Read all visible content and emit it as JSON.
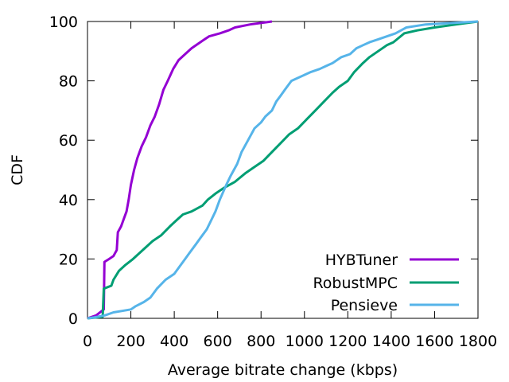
{
  "chart_data": {
    "type": "line",
    "xlabel": "Average bitrate change (kbps)",
    "ylabel": "CDF",
    "xlim": [
      0,
      1800
    ],
    "ylim": [
      0,
      100
    ],
    "x_ticks": [
      0,
      200,
      400,
      600,
      800,
      1000,
      1200,
      1400,
      1600,
      1800
    ],
    "y_ticks": [
      0,
      20,
      40,
      60,
      80,
      100
    ],
    "grid": false,
    "legend_position": "bottom-right",
    "series": [
      {
        "name": "HYBTuner",
        "color": "#9400d3",
        "points": [
          [
            0,
            0
          ],
          [
            40,
            1
          ],
          [
            75,
            3
          ],
          [
            78,
            19
          ],
          [
            100,
            20
          ],
          [
            120,
            21
          ],
          [
            135,
            23
          ],
          [
            140,
            29
          ],
          [
            155,
            31
          ],
          [
            165,
            33
          ],
          [
            180,
            36
          ],
          [
            190,
            40
          ],
          [
            200,
            45
          ],
          [
            215,
            50
          ],
          [
            230,
            54
          ],
          [
            250,
            58
          ],
          [
            270,
            61
          ],
          [
            290,
            65
          ],
          [
            310,
            68
          ],
          [
            330,
            72
          ],
          [
            350,
            77
          ],
          [
            370,
            80
          ],
          [
            395,
            84
          ],
          [
            420,
            87
          ],
          [
            450,
            89
          ],
          [
            480,
            91
          ],
          [
            520,
            93
          ],
          [
            560,
            95
          ],
          [
            610,
            96
          ],
          [
            650,
            97
          ],
          [
            680,
            98
          ],
          [
            750,
            99
          ],
          [
            850,
            100
          ]
        ]
      },
      {
        "name": "RobustMPC",
        "color": "#009e73",
        "points": [
          [
            0,
            0
          ],
          [
            70,
            0.5
          ],
          [
            75,
            10
          ],
          [
            110,
            11
          ],
          [
            120,
            13
          ],
          [
            145,
            16
          ],
          [
            175,
            18
          ],
          [
            210,
            20
          ],
          [
            240,
            22
          ],
          [
            270,
            24
          ],
          [
            300,
            26
          ],
          [
            340,
            28
          ],
          [
            380,
            31
          ],
          [
            410,
            33
          ],
          [
            440,
            35
          ],
          [
            480,
            36
          ],
          [
            530,
            38
          ],
          [
            555,
            40
          ],
          [
            590,
            42
          ],
          [
            630,
            44
          ],
          [
            680,
            46
          ],
          [
            730,
            49
          ],
          [
            770,
            51
          ],
          [
            810,
            53
          ],
          [
            850,
            56
          ],
          [
            890,
            59
          ],
          [
            930,
            62
          ],
          [
            970,
            64
          ],
          [
            1010,
            67
          ],
          [
            1050,
            70
          ],
          [
            1090,
            73
          ],
          [
            1130,
            76
          ],
          [
            1160,
            78
          ],
          [
            1200,
            80
          ],
          [
            1230,
            83
          ],
          [
            1270,
            86
          ],
          [
            1300,
            88
          ],
          [
            1340,
            90
          ],
          [
            1380,
            92
          ],
          [
            1410,
            93
          ],
          [
            1460,
            96
          ],
          [
            1520,
            97
          ],
          [
            1600,
            98
          ],
          [
            1700,
            99
          ],
          [
            1800,
            100
          ]
        ]
      },
      {
        "name": "Pensieve",
        "color": "#56b4e9",
        "points": [
          [
            0,
            0
          ],
          [
            30,
            0.3
          ],
          [
            80,
            1
          ],
          [
            120,
            2
          ],
          [
            160,
            2.5
          ],
          [
            200,
            3
          ],
          [
            220,
            4
          ],
          [
            260,
            5.5
          ],
          [
            290,
            7
          ],
          [
            320,
            10
          ],
          [
            360,
            13
          ],
          [
            400,
            15
          ],
          [
            430,
            18
          ],
          [
            450,
            20
          ],
          [
            470,
            22
          ],
          [
            500,
            25
          ],
          [
            520,
            27
          ],
          [
            550,
            30
          ],
          [
            570,
            33
          ],
          [
            590,
            36
          ],
          [
            610,
            40
          ],
          [
            640,
            45
          ],
          [
            660,
            48
          ],
          [
            690,
            52
          ],
          [
            710,
            56
          ],
          [
            740,
            60
          ],
          [
            770,
            64
          ],
          [
            800,
            66
          ],
          [
            820,
            68
          ],
          [
            850,
            70
          ],
          [
            870,
            73
          ],
          [
            890,
            75
          ],
          [
            910,
            77
          ],
          [
            940,
            80
          ],
          [
            970,
            81
          ],
          [
            1000,
            82
          ],
          [
            1030,
            83
          ],
          [
            1070,
            84
          ],
          [
            1100,
            85
          ],
          [
            1130,
            86
          ],
          [
            1150,
            87
          ],
          [
            1170,
            88
          ],
          [
            1210,
            89
          ],
          [
            1240,
            91
          ],
          [
            1270,
            92
          ],
          [
            1300,
            93
          ],
          [
            1340,
            94
          ],
          [
            1380,
            95
          ],
          [
            1420,
            96
          ],
          [
            1470,
            98
          ],
          [
            1560,
            99
          ],
          [
            1800,
            100
          ]
        ]
      }
    ]
  }
}
